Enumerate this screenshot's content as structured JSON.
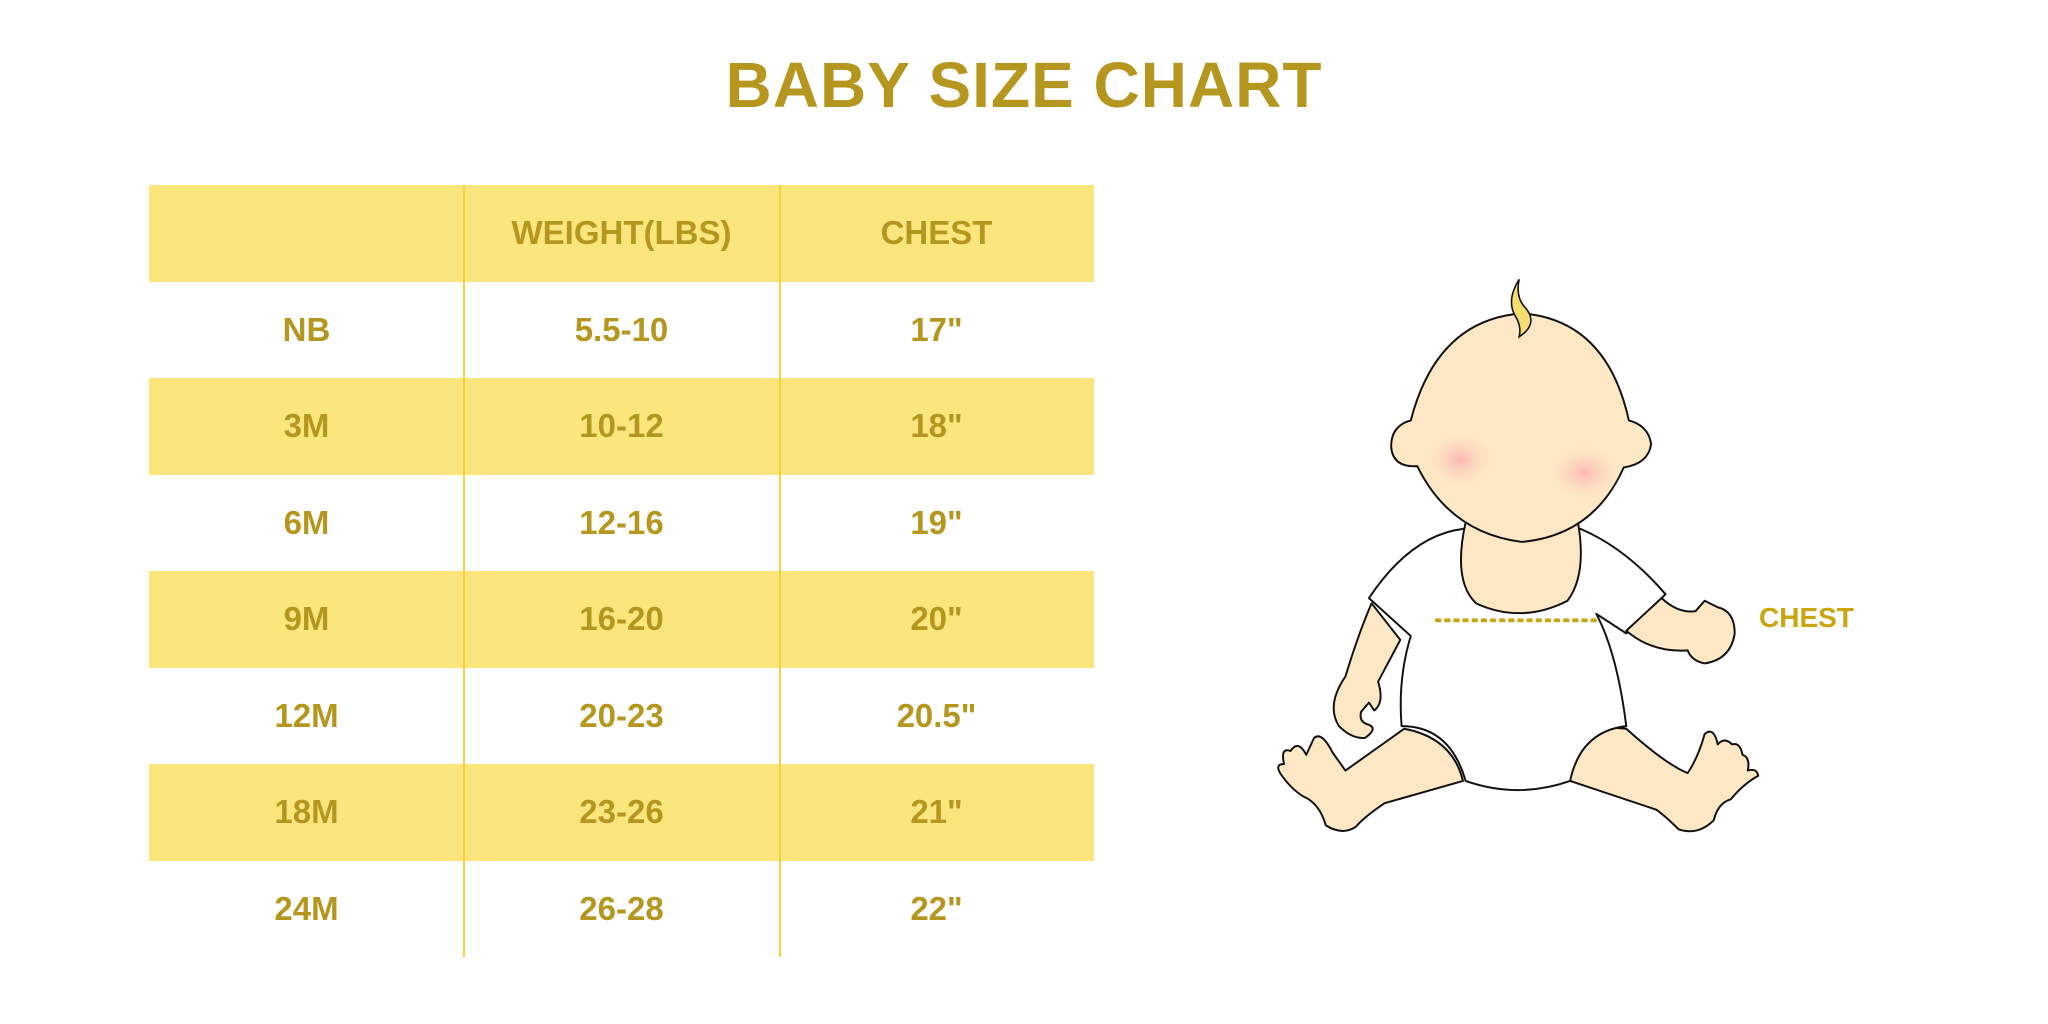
{
  "title": "BABY SIZE CHART",
  "table": {
    "headers": [
      "",
      "WEIGHT(LBS)",
      "CHEST"
    ],
    "rows": [
      [
        "NB",
        "5.5-10",
        "17\""
      ],
      [
        "3M",
        "10-12",
        "18\""
      ],
      [
        "6M",
        "12-16",
        "19\""
      ],
      [
        "9M",
        "16-20",
        "20\""
      ],
      [
        "12M",
        "20-23",
        "20.5\""
      ],
      [
        "18M",
        "23-26",
        "21\""
      ],
      [
        "24M",
        "26-28",
        "22\""
      ]
    ]
  },
  "illustration": {
    "chest_label": "CHEST"
  },
  "colors": {
    "text": "#b5971f",
    "band": "#fbe57d",
    "divider": "#f7d337",
    "skin": "#fde7c4"
  }
}
